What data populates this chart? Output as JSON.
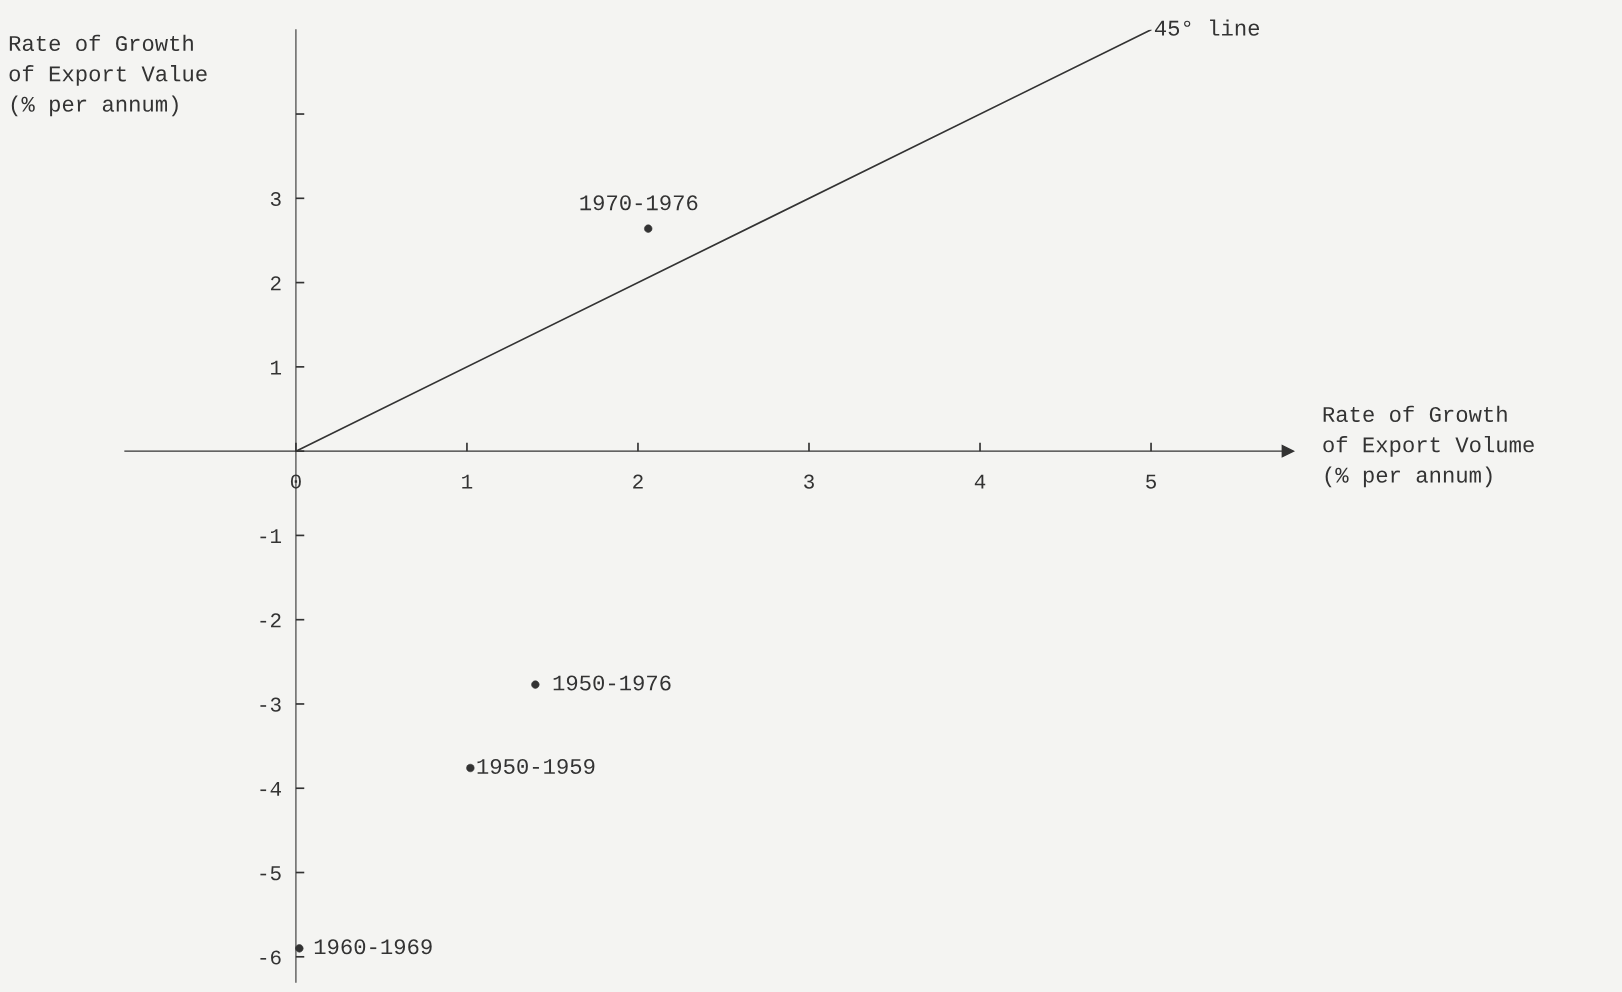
{
  "chart_data": {
    "type": "scatter",
    "xlabel": "Rate of Growth\nof Export Volume\n(% per annum)",
    "ylabel": "Rate of Growth\nof Export Value\n(% per annum)",
    "series": [
      {
        "type": "line",
        "x": [
          0,
          5
        ],
        "values": [
          0,
          5
        ],
        "color": "#333333",
        "line_style": "solid",
        "marker": "none"
      },
      {
        "x": [
          2.06,
          1.4,
          1.02,
          0.02
        ],
        "values": [
          2.64,
          -2.77,
          -3.76,
          -5.9
        ],
        "color": "#333333",
        "marker": "circle"
      }
    ],
    "annotations": [
      {
        "text": "45° line",
        "x": 5,
        "y": 5
      },
      {
        "text": "1970-1976",
        "x": 2.06,
        "y": 2.64
      },
      {
        "text": "1950-1976",
        "x": 1.4,
        "y": -2.77
      },
      {
        "text": "1950-1959",
        "x": 1.02,
        "y": -3.76
      },
      {
        "text": "1960-1969",
        "x": 0.02,
        "y": -5.9
      }
    ],
    "xlim": [
      -1.0,
      5.8
    ],
    "ylim": [
      -6.3,
      5.0
    ],
    "xticks": [
      0,
      1,
      2,
      3,
      4,
      5
    ],
    "yticks": [
      -6,
      -5,
      -4,
      -3,
      -2,
      -1,
      {
        "value": 0,
        "label": null
      },
      1,
      2,
      3,
      {
        "value": 4,
        "label": null
      }
    ],
    "grid": false,
    "legend": false
  }
}
